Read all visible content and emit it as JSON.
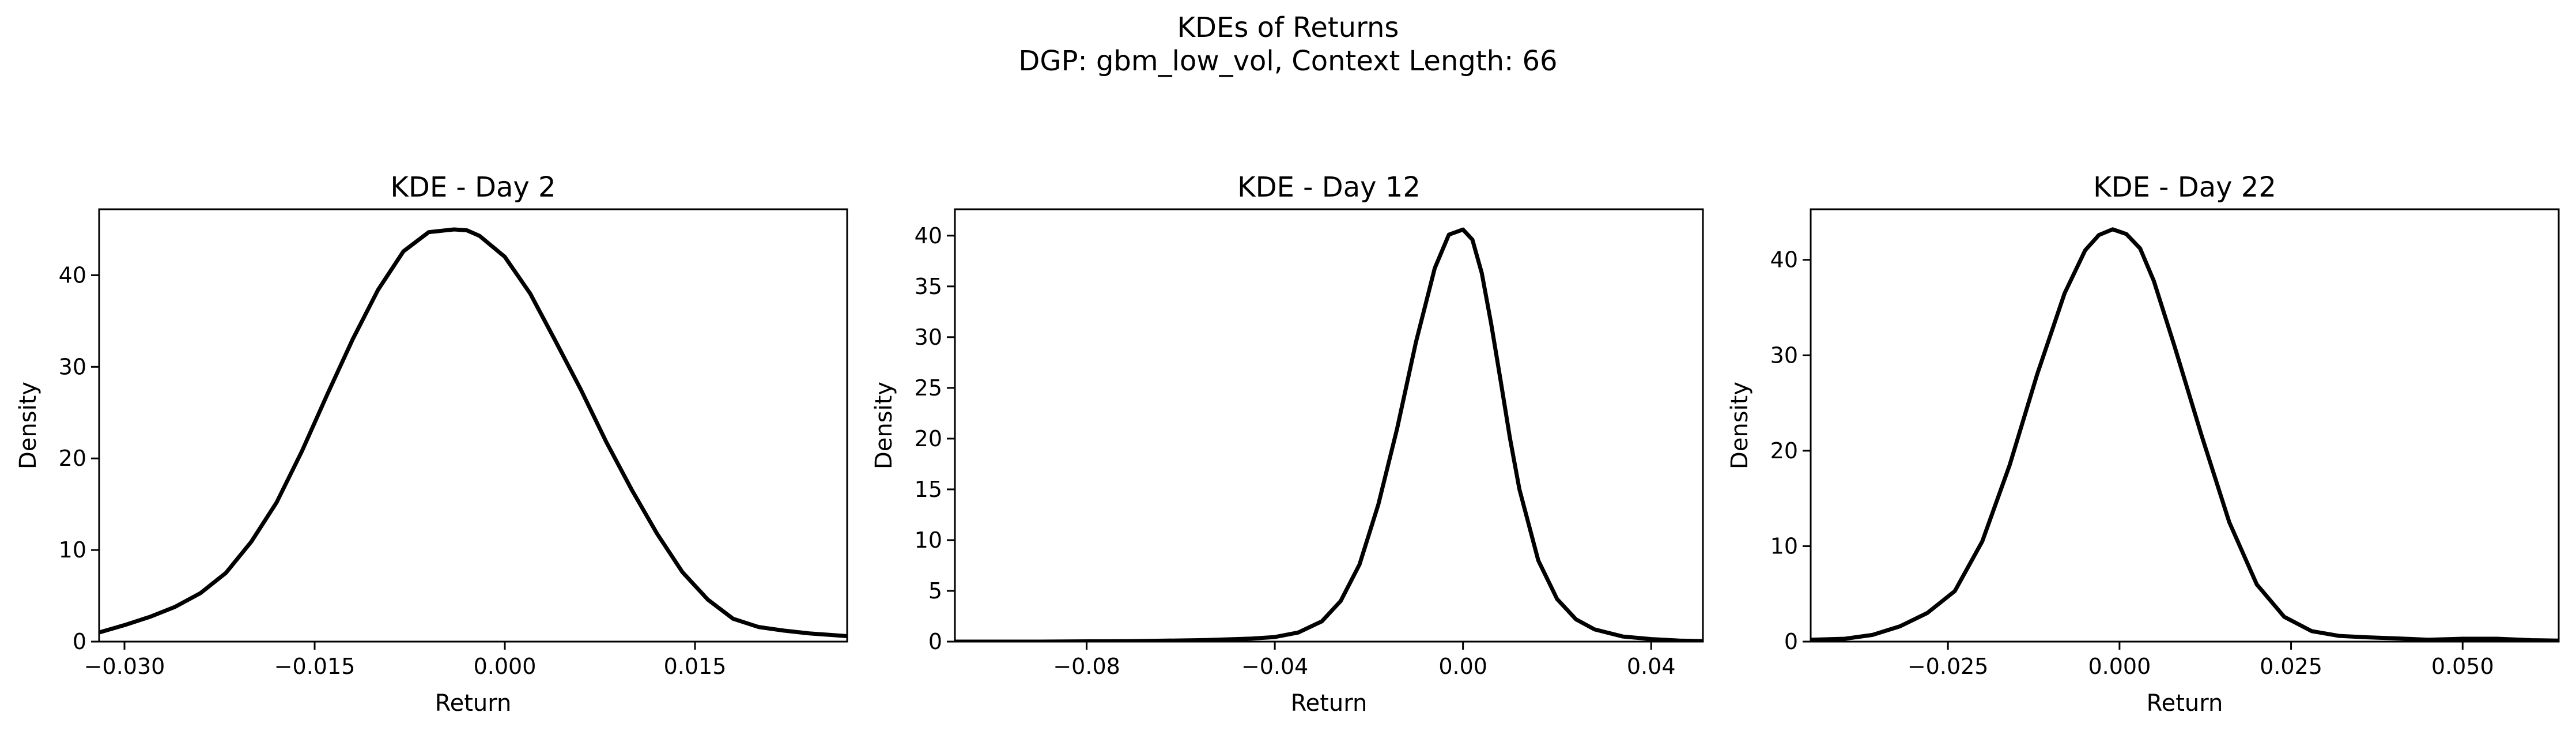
{
  "figure": {
    "title_line1": "KDEs of Returns",
    "title_line2": "DGP: gbm_low_vol, Context Length: 66"
  },
  "chart_data": [
    {
      "type": "line",
      "title": "KDE - Day 2",
      "xlabel": "Return",
      "ylabel": "Density",
      "xlim": [
        -0.032,
        0.027
      ],
      "ylim": [
        0,
        47.2
      ],
      "xticks": [
        -0.03,
        -0.015,
        0.0,
        0.015
      ],
      "xtick_labels": [
        "−0.030",
        "−0.015",
        "0.000",
        "0.015"
      ],
      "yticks": [
        0,
        10,
        20,
        30,
        40
      ],
      "ytick_labels": [
        "0",
        "10",
        "20",
        "30",
        "40"
      ],
      "grid": false,
      "series": [
        {
          "color": "#000000",
          "x": [
            -0.032,
            -0.03,
            -0.028,
            -0.026,
            -0.024,
            -0.022,
            -0.02,
            -0.018,
            -0.016,
            -0.014,
            -0.012,
            -0.01,
            -0.008,
            -0.006,
            -0.004,
            -0.003,
            -0.002,
            0.0,
            0.002,
            0.004,
            0.006,
            0.008,
            0.01,
            0.012,
            0.014,
            0.016,
            0.018,
            0.02,
            0.022,
            0.024,
            0.026,
            0.027
          ],
          "y": [
            1.0,
            1.8,
            2.7,
            3.8,
            5.3,
            7.5,
            10.9,
            15.2,
            20.8,
            27.0,
            33.0,
            38.4,
            42.6,
            44.7,
            45.0,
            44.9,
            44.3,
            42.0,
            38.0,
            32.8,
            27.5,
            21.8,
            16.6,
            11.8,
            7.6,
            4.6,
            2.5,
            1.6,
            1.2,
            0.9,
            0.7,
            0.6
          ]
        }
      ]
    },
    {
      "type": "line",
      "title": "KDE - Day 12",
      "xlabel": "Return",
      "ylabel": "Density",
      "xlim": [
        -0.108,
        0.051
      ],
      "ylim": [
        0,
        42.6
      ],
      "xticks": [
        -0.08,
        -0.04,
        0.0,
        0.04
      ],
      "xtick_labels": [
        "−0.08",
        "−0.04",
        "0.00",
        "0.04"
      ],
      "yticks": [
        0,
        5,
        10,
        15,
        20,
        25,
        30,
        35,
        40
      ],
      "ytick_labels": [
        "0",
        "5",
        "10",
        "15",
        "20",
        "25",
        "30",
        "35",
        "40"
      ],
      "grid": false,
      "series": [
        {
          "color": "#000000",
          "x": [
            -0.108,
            -0.09,
            -0.07,
            -0.055,
            -0.045,
            -0.04,
            -0.035,
            -0.03,
            -0.026,
            -0.022,
            -0.018,
            -0.014,
            -0.01,
            -0.006,
            -0.003,
            0.0,
            0.002,
            0.004,
            0.006,
            0.008,
            0.01,
            0.012,
            0.016,
            0.02,
            0.024,
            0.028,
            0.034,
            0.04,
            0.046,
            0.051
          ],
          "y": [
            0.0,
            0.0,
            0.05,
            0.15,
            0.3,
            0.45,
            0.9,
            2.0,
            4.0,
            7.6,
            13.5,
            21.0,
            29.5,
            36.8,
            40.1,
            40.6,
            39.6,
            36.3,
            31.3,
            25.7,
            20.0,
            15.0,
            8.0,
            4.2,
            2.2,
            1.2,
            0.5,
            0.25,
            0.1,
            0.05
          ]
        }
      ]
    },
    {
      "type": "line",
      "title": "KDE - Day 22",
      "xlabel": "Return",
      "ylabel": "Density",
      "xlim": [
        -0.045,
        0.064
      ],
      "ylim": [
        0,
        45.3
      ],
      "xticks": [
        -0.025,
        0.0,
        0.025,
        0.05
      ],
      "xtick_labels": [
        "−0.025",
        "0.000",
        "0.025",
        "0.050"
      ],
      "yticks": [
        0,
        10,
        20,
        30,
        40
      ],
      "ytick_labels": [
        "0",
        "10",
        "20",
        "30",
        "40"
      ],
      "grid": false,
      "series": [
        {
          "color": "#000000",
          "x": [
            -0.045,
            -0.04,
            -0.036,
            -0.032,
            -0.028,
            -0.024,
            -0.02,
            -0.016,
            -0.012,
            -0.008,
            -0.005,
            -0.003,
            -0.001,
            0.001,
            0.003,
            0.005,
            0.008,
            0.012,
            0.016,
            0.02,
            0.024,
            0.028,
            0.032,
            0.036,
            0.04,
            0.045,
            0.05,
            0.055,
            0.06,
            0.064
          ],
          "y": [
            0.2,
            0.3,
            0.7,
            1.6,
            3.0,
            5.3,
            10.5,
            18.5,
            28.0,
            36.5,
            41.0,
            42.6,
            43.2,
            42.7,
            41.2,
            37.8,
            31.0,
            21.5,
            12.5,
            6.0,
            2.6,
            1.1,
            0.6,
            0.45,
            0.35,
            0.2,
            0.3,
            0.3,
            0.15,
            0.1
          ]
        }
      ]
    }
  ]
}
